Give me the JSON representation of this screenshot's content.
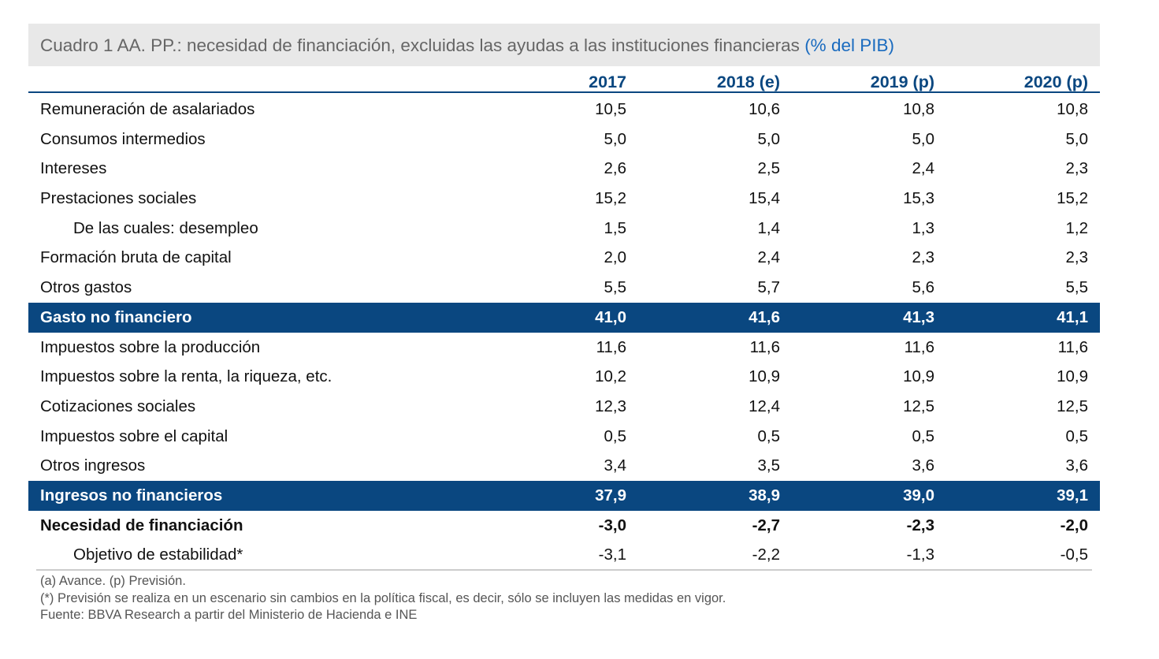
{
  "title": {
    "text": "Cuadro 1 AA. PP.: necesidad de financiación, excluidas las ayudas a las instituciones financieras",
    "unit": "(% del PIB)"
  },
  "columns": [
    "2017",
    "2018 (e)",
    "2019 (p)",
    "2020 (p)"
  ],
  "rows": [
    {
      "label": "Remuneración de asalariados",
      "values": [
        "10,5",
        "10,6",
        "10,8",
        "10,8"
      ],
      "style": ""
    },
    {
      "label": "Consumos intermedios",
      "values": [
        "5,0",
        "5,0",
        "5,0",
        "5,0"
      ],
      "style": ""
    },
    {
      "label": "Intereses",
      "values": [
        "2,6",
        "2,5",
        "2,4",
        "2,3"
      ],
      "style": ""
    },
    {
      "label": "Prestaciones sociales",
      "values": [
        "15,2",
        "15,4",
        "15,3",
        "15,2"
      ],
      "style": ""
    },
    {
      "label": "De las cuales: desempleo",
      "values": [
        "1,5",
        "1,4",
        "1,3",
        "1,2"
      ],
      "style": "indent"
    },
    {
      "label": "Formación bruta de capital",
      "values": [
        "2,0",
        "2,4",
        "2,3",
        "2,3"
      ],
      "style": ""
    },
    {
      "label": "Otros gastos",
      "values": [
        "5,5",
        "5,7",
        "5,6",
        "5,5"
      ],
      "style": ""
    },
    {
      "label": "Gasto no financiero",
      "values": [
        "41,0",
        "41,6",
        "41,3",
        "41,1"
      ],
      "style": "hl"
    },
    {
      "label": "Impuestos sobre la producción",
      "values": [
        "11,6",
        "11,6",
        "11,6",
        "11,6"
      ],
      "style": ""
    },
    {
      "label": "Impuestos sobre la renta, la riqueza, etc.",
      "values": [
        "10,2",
        "10,9",
        "10,9",
        "10,9"
      ],
      "style": ""
    },
    {
      "label": "Cotizaciones sociales",
      "values": [
        "12,3",
        "12,4",
        "12,5",
        "12,5"
      ],
      "style": ""
    },
    {
      "label": "Impuestos sobre el capital",
      "values": [
        "0,5",
        "0,5",
        "0,5",
        "0,5"
      ],
      "style": ""
    },
    {
      "label": "Otros ingresos",
      "values": [
        "3,4",
        "3,5",
        "3,6",
        "3,6"
      ],
      "style": ""
    },
    {
      "label": "Ingresos no financieros",
      "values": [
        "37,9",
        "38,9",
        "39,0",
        "39,1"
      ],
      "style": "hl"
    },
    {
      "label": "Necesidad de financiación",
      "values": [
        "-3,0",
        "-2,7",
        "-2,3",
        "-2,0"
      ],
      "style": "bold"
    },
    {
      "label": "Objetivo de estabilidad*",
      "values": [
        "-3,1",
        "-2,2",
        "-1,3",
        "-0,5"
      ],
      "style": "indent"
    }
  ],
  "notes": [
    "(a) Avance.  (p) Previsión.",
    "(*) Previsión se realiza en un escenario sin cambios en la política fiscal, es decir, sólo se incluyen las medidas en vigor.",
    "Fuente: BBVA Research a partir del Ministerio de Hacienda e INE"
  ],
  "colors": {
    "accent": "#0a4780",
    "title_bg": "#e8e8e8"
  }
}
